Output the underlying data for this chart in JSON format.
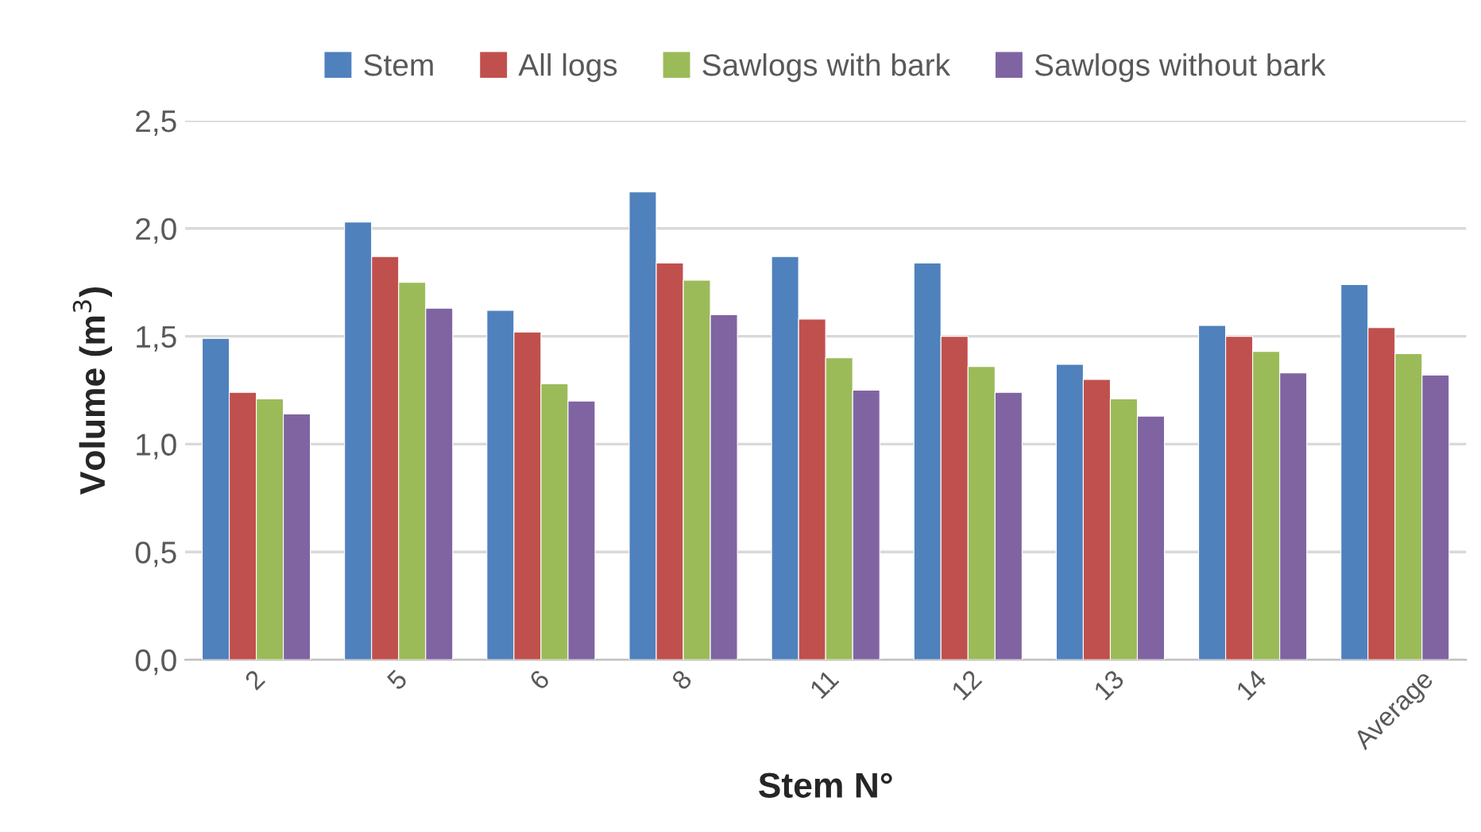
{
  "chart_data": {
    "type": "bar",
    "xlabel": "Stem N°",
    "ylabel": "Volume (m$^{3}$)",
    "categories": [
      "2",
      "5",
      "6",
      "8",
      "11",
      "12",
      "13",
      "14",
      "Average"
    ],
    "series": [
      {
        "name": "Stem",
        "color": "#4f81bd",
        "values": [
          1.49,
          2.03,
          1.62,
          2.17,
          1.87,
          1.84,
          1.37,
          1.55,
          1.74
        ]
      },
      {
        "name": "All logs",
        "color": "#c0504d",
        "values": [
          1.24,
          1.87,
          1.52,
          1.84,
          1.58,
          1.5,
          1.3,
          1.5,
          1.54
        ]
      },
      {
        "name": "Sawlogs with bark",
        "color": "#9bbb59",
        "values": [
          1.21,
          1.75,
          1.28,
          1.76,
          1.4,
          1.36,
          1.21,
          1.43,
          1.42
        ]
      },
      {
        "name": "Sawlogs without bark",
        "color": "#8064a2",
        "values": [
          1.14,
          1.63,
          1.2,
          1.6,
          1.25,
          1.24,
          1.13,
          1.33,
          1.32
        ]
      }
    ],
    "ylim": [
      0,
      2.5
    ],
    "yticks": [
      {
        "value": 0,
        "label": "0,0"
      },
      {
        "value": 0.5,
        "label": "0,5"
      },
      {
        "value": 1,
        "label": "1,0"
      },
      {
        "value": 1.5,
        "label": "1,5"
      },
      {
        "value": 2,
        "label": "2,0"
      },
      {
        "value": 2.5,
        "label": "2,5"
      }
    ],
    "grid": "y",
    "legend": "top"
  }
}
